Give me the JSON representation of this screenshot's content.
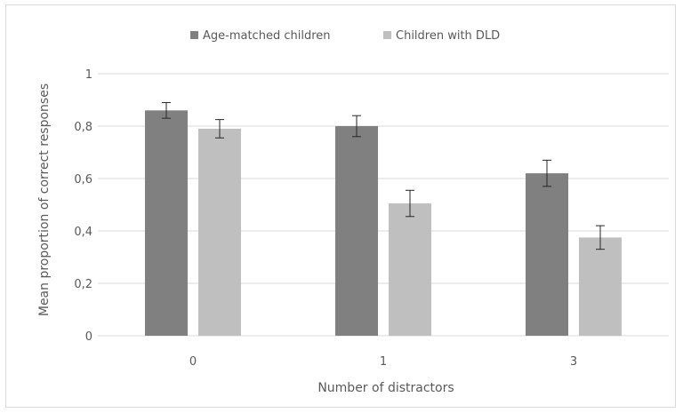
{
  "chart_data": {
    "type": "bar",
    "title": "",
    "xlabel": "Number  of distractors",
    "ylabel": "Mean proportion of correct responses",
    "categories": [
      "0",
      "1",
      "3"
    ],
    "series": [
      {
        "name": "Age-matched children",
        "values": [
          0.86,
          0.8,
          0.62
        ],
        "errors": [
          0.03,
          0.04,
          0.05
        ],
        "color": "#808080"
      },
      {
        "name": "Children with DLD",
        "values": [
          0.79,
          0.505,
          0.375
        ],
        "errors": [
          0.035,
          0.05,
          0.045
        ],
        "color": "#bfbfbf"
      }
    ],
    "ylim": [
      0,
      1
    ],
    "yticks": [
      0,
      0.2,
      0.4,
      0.6,
      0.8,
      1
    ],
    "ytick_labels": [
      "0",
      "0,2",
      "0,4",
      "0,6",
      "0,8",
      "1"
    ],
    "grid": true,
    "legend_position": "top-center",
    "colors": {
      "grid": "#d9d9d9",
      "text": "#595959",
      "errorbar": "#262626"
    }
  }
}
